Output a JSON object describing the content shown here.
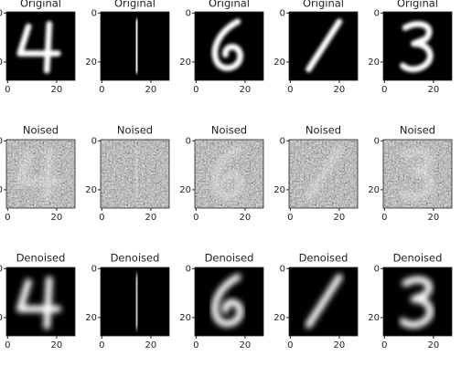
{
  "figure": {
    "row_titles": [
      "Original",
      "Noised",
      "Denoised"
    ],
    "xtick_labels": [
      "0",
      "20"
    ],
    "ytick_labels": [
      "0",
      "20"
    ]
  }
}
